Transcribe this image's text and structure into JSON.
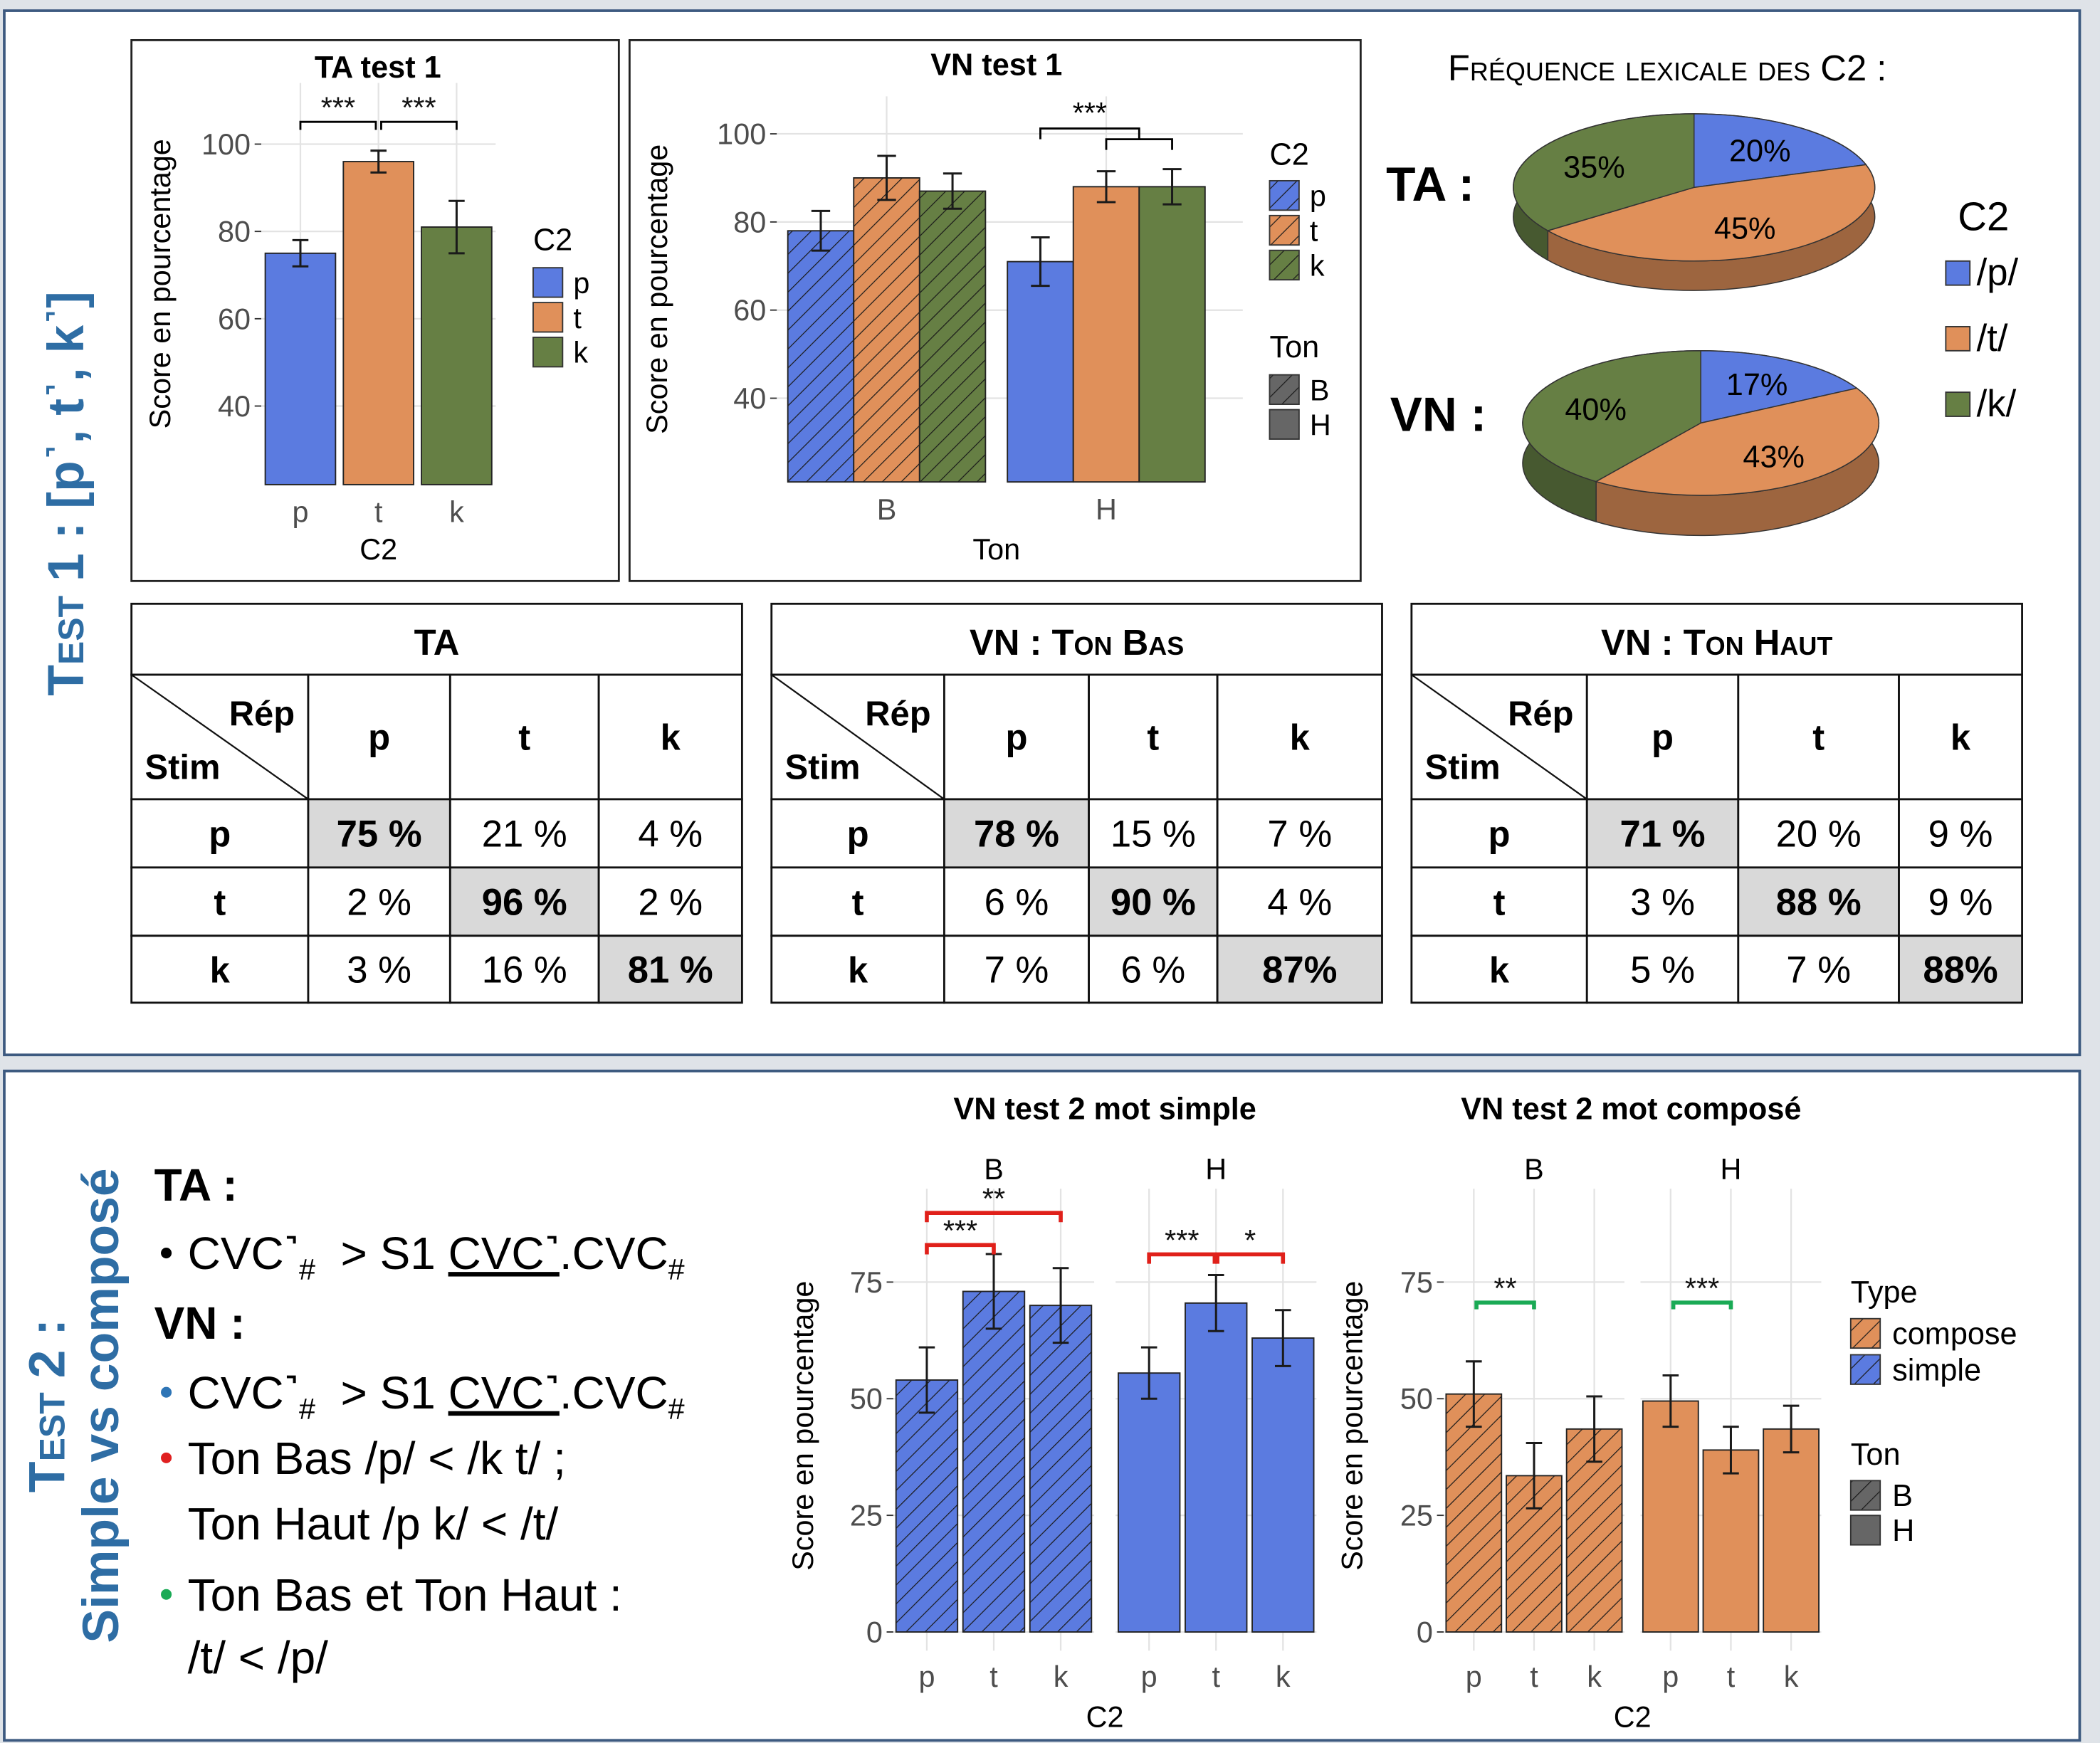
{
  "section_labels": {
    "test1": "Test 1 :",
    "test1_sounds": "[p˺, t˺, k˺]",
    "test2": "Test 2 :",
    "test2_sub": "Simple vs composé"
  },
  "chart_data": [
    {
      "type": "bar",
      "title": "TA test 1",
      "x_label": "C2",
      "y_label": "Score en pourcentage",
      "categories": [
        "p",
        "t",
        "k"
      ],
      "values": [
        75,
        96,
        81
      ],
      "errors": [
        3,
        2.5,
        6
      ],
      "colors": [
        "#5b7be0",
        "#e0905a",
        "#667f44"
      ],
      "ylim": [
        22,
        114
      ],
      "yticks": [
        40,
        60,
        80,
        100
      ],
      "grid": true,
      "legend_title": "C2",
      "annotations": [
        {
          "text": "***",
          "color": "#000000"
        },
        {
          "text": "***",
          "color": "#000000"
        }
      ]
    },
    {
      "type": "grouped_bar",
      "title": "VN test 1",
      "x_label": "Ton",
      "y_label": "Score en pourcentage",
      "categories": [
        "B",
        "H"
      ],
      "hatched": [
        true,
        false
      ],
      "series": [
        {
          "name": "p",
          "color": "#5b7be0",
          "values": [
            78,
            71
          ],
          "errors": [
            4.5,
            5.5
          ]
        },
        {
          "name": "t",
          "color": "#e0905a",
          "values": [
            90,
            88
          ],
          "errors": [
            5,
            3.5
          ]
        },
        {
          "name": "k",
          "color": "#667f44",
          "values": [
            87,
            88
          ],
          "errors": [
            4,
            4
          ]
        }
      ],
      "ylim": [
        21,
        108.5
      ],
      "yticks": [
        40,
        60,
        80,
        100
      ],
      "grid": true,
      "legend_title": "C2",
      "legend2_title": "Ton",
      "annotations": [
        {
          "text": "***",
          "color": "#000000"
        }
      ]
    },
    {
      "type": "pie",
      "title": "Fréquence lexicale des C2 :",
      "legend_title": "C2",
      "labels": [
        "/p/",
        "/t/",
        "/k/"
      ],
      "colors": [
        "#5b7be0",
        "#e0905a",
        "#667f44"
      ],
      "pies": [
        {
          "name": "TA :",
          "values": [
            20,
            45,
            35
          ],
          "value_labels": [
            "20%",
            "45%",
            "35%"
          ]
        },
        {
          "name": "VN :",
          "values": [
            17,
            43,
            40
          ],
          "value_labels": [
            "17%",
            "43%",
            "40%"
          ]
        }
      ]
    },
    {
      "type": "facet_bar",
      "title": "VN test 2 mot simple",
      "x_label": "C2",
      "y_label": "Score en pourcentage",
      "categories": [
        "p",
        "t",
        "k"
      ],
      "color": "#5b7be0",
      "facets": [
        {
          "name": "B",
          "hatched": true,
          "values": [
            54,
            73,
            70
          ],
          "errors": [
            7,
            8,
            8
          ]
        },
        {
          "name": "H",
          "hatched": false,
          "values": [
            55.5,
            70.5,
            63
          ],
          "errors": [
            5.5,
            6,
            6
          ]
        }
      ],
      "ylim": [
        -4,
        95
      ],
      "yticks": [
        0,
        25,
        50,
        75
      ],
      "grid": true,
      "annotations": [
        {
          "text": "**",
          "color": "#e0201a"
        },
        {
          "text": "***",
          "color": "#e0201a"
        },
        {
          "text": "***",
          "color": "#e0201a"
        },
        {
          "text": "*",
          "color": "#e0201a"
        }
      ]
    },
    {
      "type": "facet_bar",
      "title": "VN test 2 mot composé",
      "x_label": "C2",
      "y_label": "Score en pourcentage",
      "categories": [
        "p",
        "t",
        "k"
      ],
      "color": "#e0905a",
      "facets": [
        {
          "name": "B",
          "hatched": true,
          "values": [
            51,
            33.5,
            43.5
          ],
          "errors": [
            7,
            7,
            7
          ]
        },
        {
          "name": "H",
          "hatched": false,
          "values": [
            49.5,
            39,
            43.5
          ],
          "errors": [
            5.5,
            5,
            5
          ]
        }
      ],
      "ylim": [
        -4,
        95
      ],
      "yticks": [
        0,
        25,
        50,
        75
      ],
      "grid": true,
      "annotations": [
        {
          "text": "**",
          "color": "#1aaa55"
        },
        {
          "text": "***",
          "color": "#1aaa55"
        }
      ],
      "legend": {
        "type_title": "Type",
        "type_labels": [
          "compose",
          "simple"
        ],
        "ton_title": "Ton",
        "ton_labels": [
          "B",
          "H"
        ]
      }
    }
  ],
  "tables": [
    {
      "title": "TA",
      "corner_top": "Rép",
      "corner_bottom": "Stim",
      "columns": [
        "p",
        "t",
        "k"
      ],
      "rows": [
        {
          "label": "p",
          "cells": [
            "75 %",
            "21 %",
            "4 %"
          ]
        },
        {
          "label": "t",
          "cells": [
            "2 %",
            "96 %",
            "2 %"
          ]
        },
        {
          "label": "k",
          "cells": [
            "3 %",
            "16 %",
            "81 %"
          ]
        }
      ]
    },
    {
      "title": "VN : Ton Bas",
      "corner_top": "Rép",
      "corner_bottom": "Stim",
      "columns": [
        "p",
        "t",
        "k"
      ],
      "rows": [
        {
          "label": "p",
          "cells": [
            "78 %",
            "15 %",
            "7 %"
          ]
        },
        {
          "label": "t",
          "cells": [
            "6 %",
            "90 %",
            "4 %"
          ]
        },
        {
          "label": "k",
          "cells": [
            "7 %",
            "6 %",
            "87%"
          ]
        }
      ]
    },
    {
      "title": "VN : Ton Haut",
      "corner_top": "Rép",
      "corner_bottom": "Stim",
      "columns": [
        "p",
        "t",
        "k"
      ],
      "rows": [
        {
          "label": "p",
          "cells": [
            "71 %",
            "20 %",
            "9 %"
          ]
        },
        {
          "label": "t",
          "cells": [
            "3 %",
            "88 %",
            "9 %"
          ]
        },
        {
          "label": "k",
          "cells": [
            "5 %",
            "7 %",
            "88%"
          ]
        }
      ]
    }
  ],
  "test2_text": {
    "ta_heading": "TA :",
    "vn_heading": "VN :",
    "items": [
      {
        "bullet_color": "#000000",
        "lines": [
          [
            {
              "text": "CVC˺"
            },
            {
              "text": "#",
              "style": "sub"
            },
            {
              "text": "  > S1 "
            },
            {
              "text": "CVC˺",
              "style": "underline"
            },
            {
              "text": ".CVC"
            },
            {
              "text": "#",
              "style": "sub"
            }
          ]
        ]
      },
      {
        "bullet_color": "#2e75b6",
        "lines": [
          [
            {
              "text": "CVC˺"
            },
            {
              "text": "#",
              "style": "sub"
            },
            {
              "text": "  > S1 "
            },
            {
              "text": "CVC˺",
              "style": "underline"
            },
            {
              "text": ".CVC"
            },
            {
              "text": "#",
              "style": "sub"
            }
          ]
        ]
      },
      {
        "bullet_color": "#e02020",
        "lines": [
          [
            {
              "text": "Ton Bas /p/ < /k t/ ;"
            }
          ],
          [
            {
              "text": "Ton Haut /p k/ < /t/"
            }
          ]
        ]
      },
      {
        "bullet_color": "#1aaa55",
        "lines": [
          [
            {
              "text": "Ton Bas et Ton Haut :"
            }
          ],
          [
            {
              "text": "/t/ < /p/"
            }
          ]
        ]
      }
    ]
  }
}
